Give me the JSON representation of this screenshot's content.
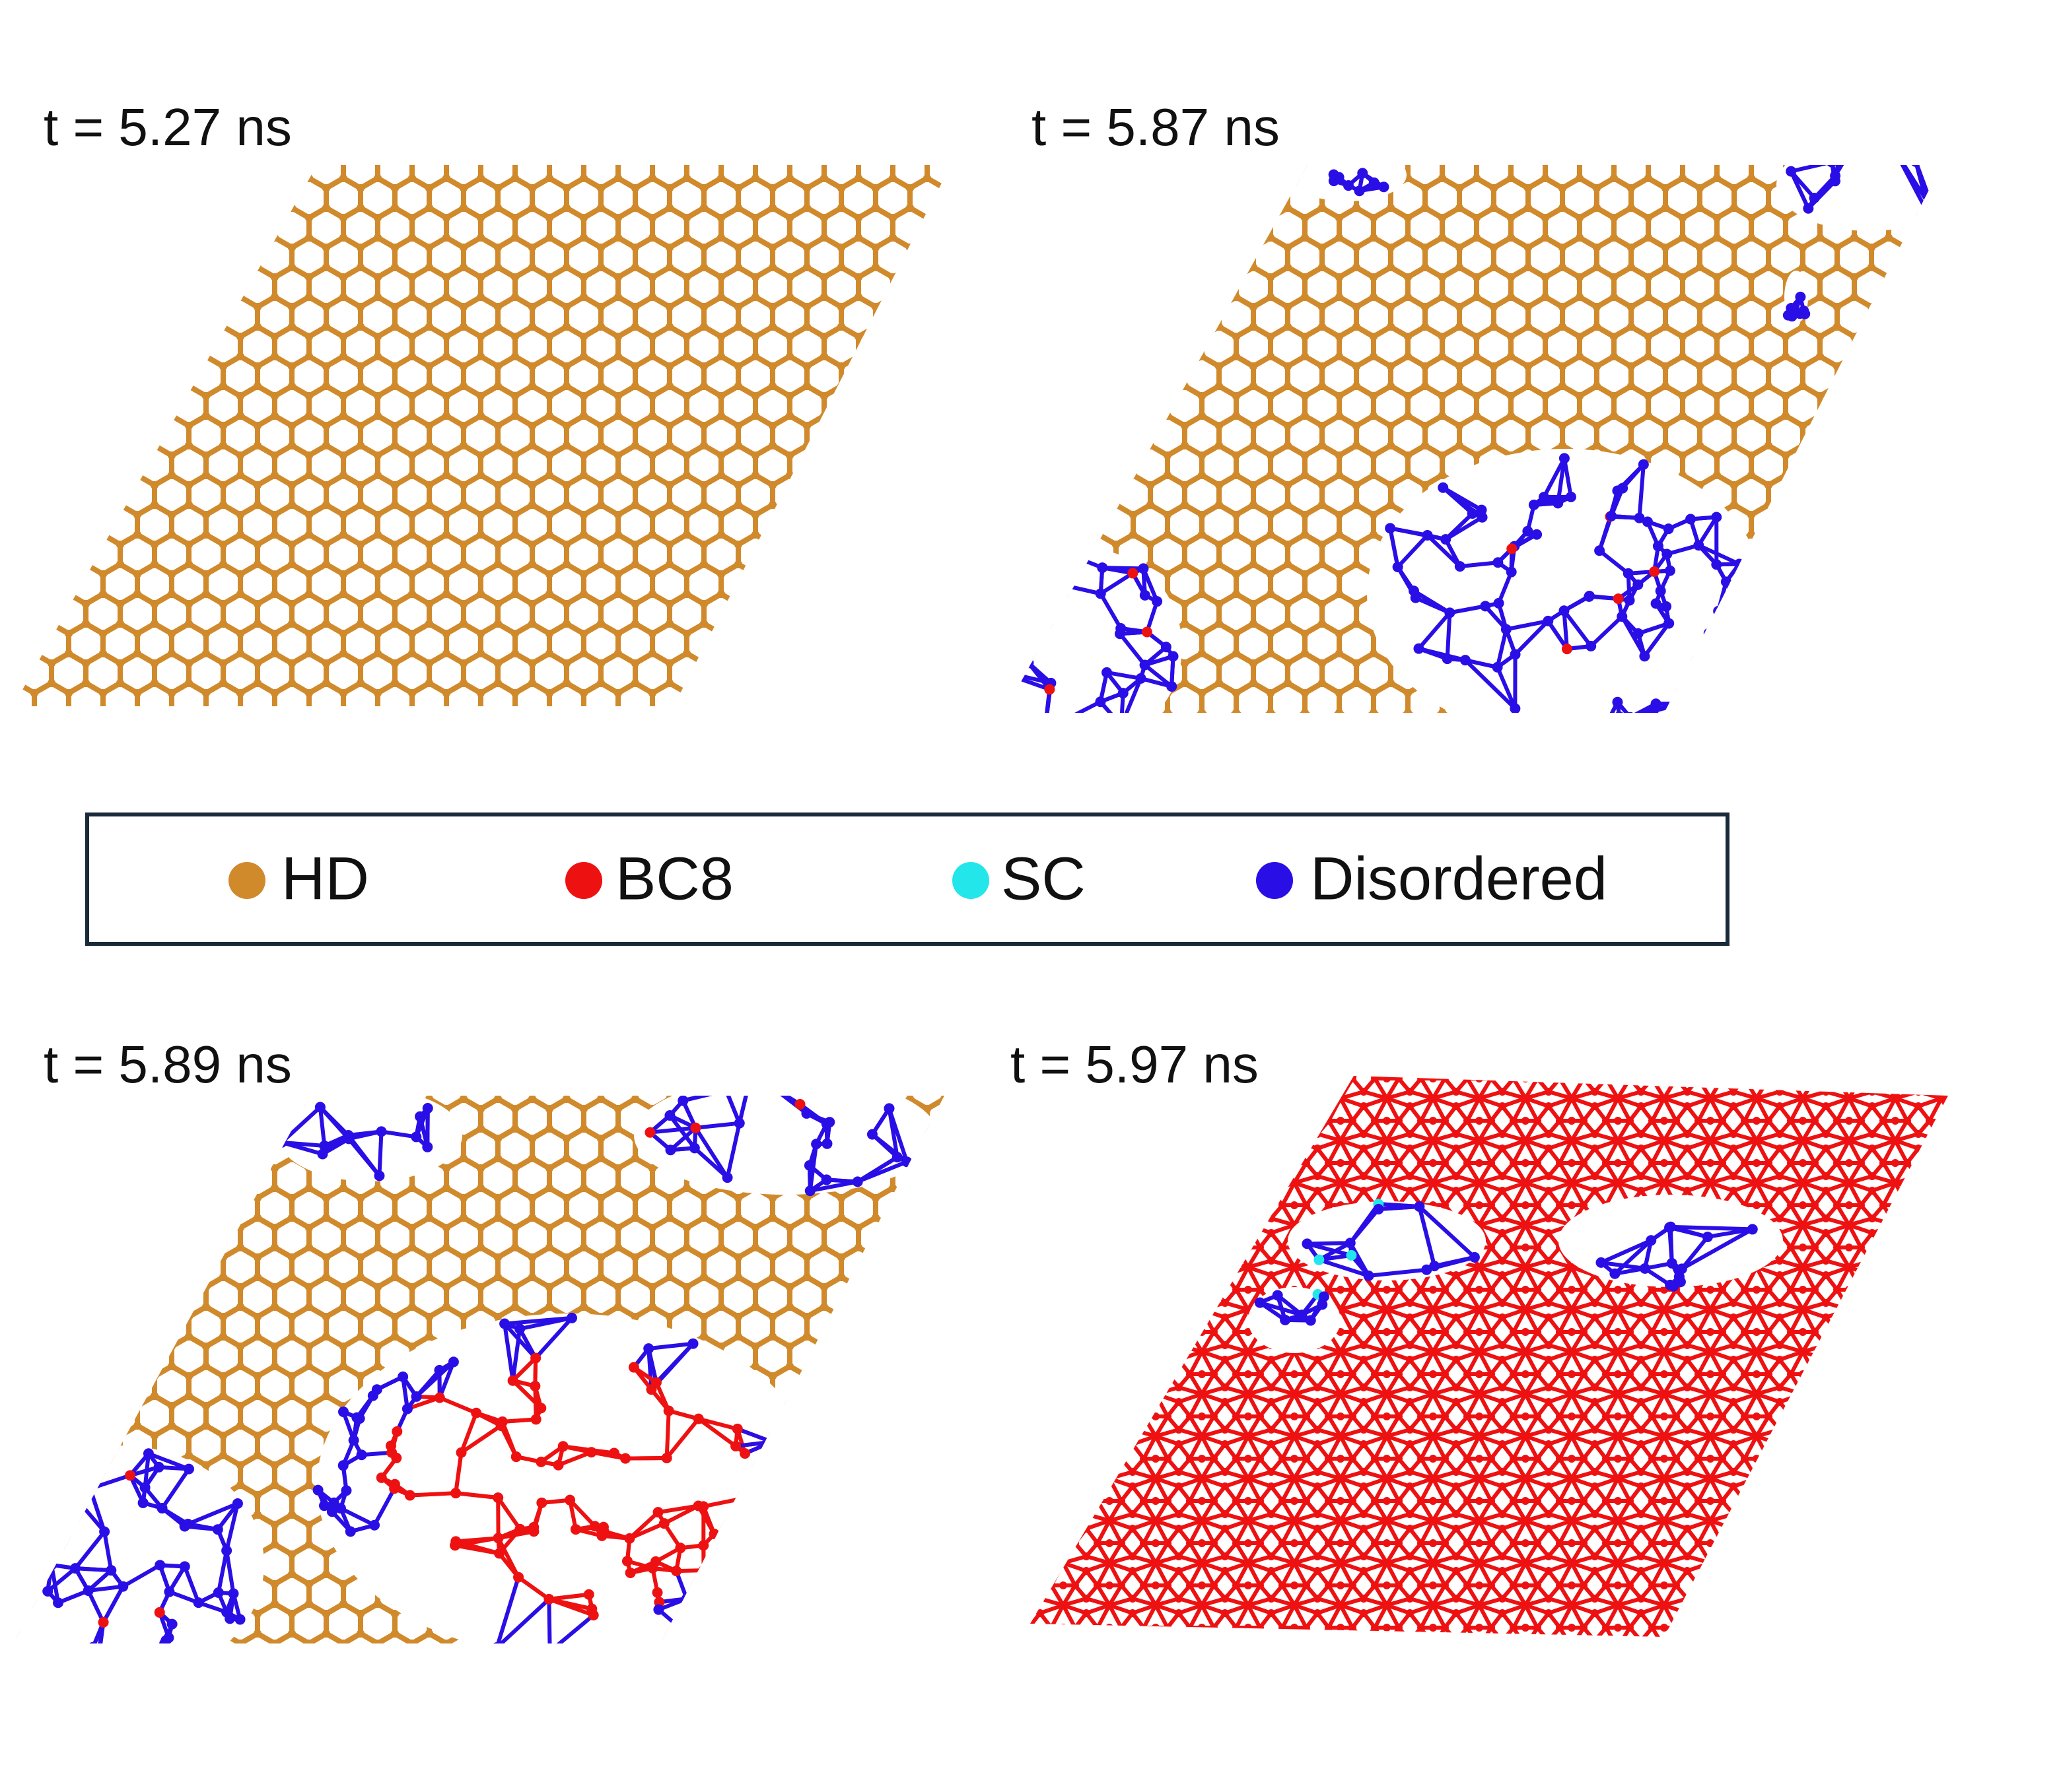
{
  "panels": [
    {
      "label": "t = 5.27 ns"
    },
    {
      "label": "t = 5.87 ns"
    },
    {
      "label": "t = 5.89 ns"
    },
    {
      "label": "t = 5.97 ns"
    }
  ],
  "legend": [
    {
      "label": "HD",
      "color": "#d08a2c"
    },
    {
      "label": "BC8",
      "color": "#ee1111"
    },
    {
      "label": "SC",
      "color": "#22e6ea"
    },
    {
      "label": "Disordered",
      "color": "#2a0ee6"
    }
  ]
}
